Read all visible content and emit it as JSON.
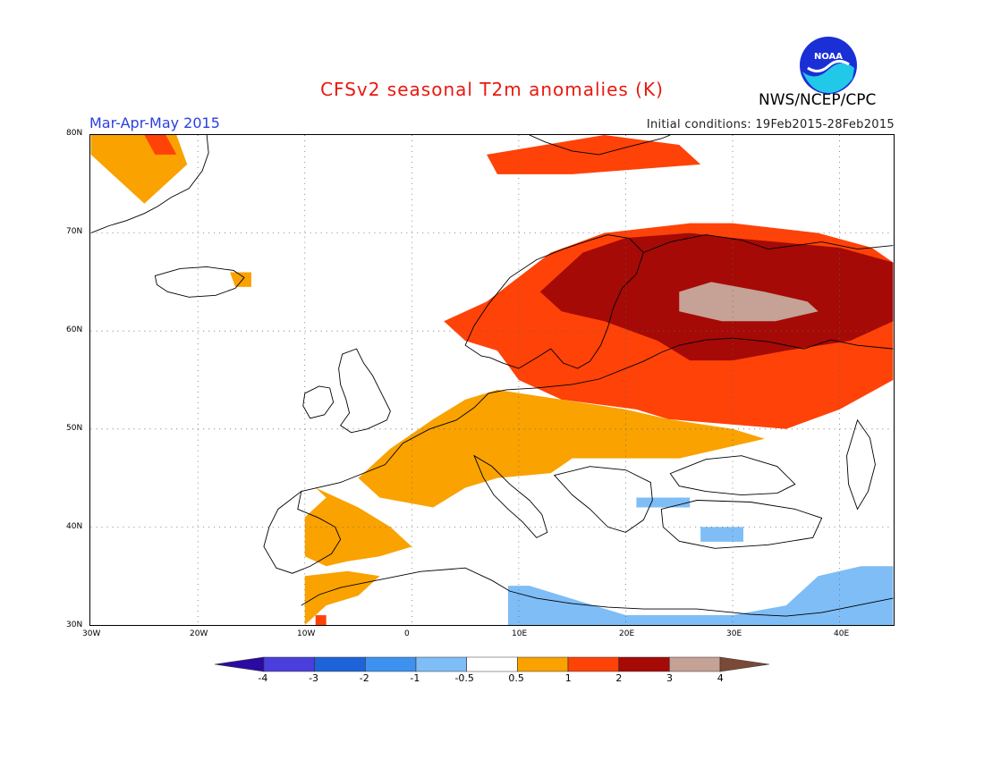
{
  "title": "CFSv2 seasonal T2m anomalies (K)",
  "season": "Mar-Apr-May 2015",
  "initial_conditions": "Initial conditions: 19Feb2015-28Feb2015",
  "agency": "NWS/NCEP/CPC",
  "logo_text": "NOAA",
  "map": {
    "lon_range": [
      -30,
      45
    ],
    "lat_range": [
      30,
      80
    ],
    "lon_labels": [
      "30W",
      "20W",
      "10W",
      "0",
      "10E",
      "20E",
      "30E",
      "40E"
    ],
    "lat_labels": [
      "80N",
      "70N",
      "60N",
      "50N",
      "40N",
      "30N"
    ],
    "regions": [
      {
        "category": "0.5-1",
        "lonlat": [
          [
            -30,
            80
          ],
          [
            -22,
            80
          ],
          [
            -21,
            77
          ],
          [
            -23,
            75
          ],
          [
            -25,
            73
          ],
          [
            -28,
            76
          ],
          [
            -30,
            78
          ]
        ]
      },
      {
        "category": "1-2",
        "lonlat": [
          [
            -25,
            80
          ],
          [
            -23,
            80
          ],
          [
            -22,
            78
          ],
          [
            -24,
            78
          ]
        ]
      },
      {
        "category": "0.5-1",
        "lonlat": [
          [
            -17,
            66
          ],
          [
            -15,
            66
          ],
          [
            -15,
            64.5
          ],
          [
            -16.5,
            64.5
          ]
        ]
      },
      {
        "category": "1-2",
        "lonlat": [
          [
            7,
            78
          ],
          [
            18,
            80
          ],
          [
            25,
            79
          ],
          [
            27,
            77
          ],
          [
            15,
            76
          ],
          [
            8,
            76
          ]
        ]
      },
      {
        "category": "1-2",
        "lonlat": [
          [
            3,
            61
          ],
          [
            7,
            63
          ],
          [
            13,
            68
          ],
          [
            18,
            70
          ],
          [
            26,
            71
          ],
          [
            30,
            71
          ],
          [
            38,
            70
          ],
          [
            43,
            68.5
          ],
          [
            45,
            67
          ],
          [
            45,
            55
          ],
          [
            40,
            52
          ],
          [
            35,
            50
          ],
          [
            24,
            51
          ],
          [
            21,
            52
          ],
          [
            14,
            53
          ],
          [
            10,
            55
          ],
          [
            8,
            58
          ],
          [
            5,
            59
          ]
        ]
      },
      {
        "category": "2-3",
        "lonlat": [
          [
            12,
            64
          ],
          [
            16,
            68
          ],
          [
            20,
            69.5
          ],
          [
            26,
            70
          ],
          [
            30,
            69.5
          ],
          [
            35,
            69
          ],
          [
            40,
            68.5
          ],
          [
            45,
            67
          ],
          [
            45,
            61
          ],
          [
            41,
            59
          ],
          [
            35,
            58
          ],
          [
            30,
            57
          ],
          [
            26,
            57
          ],
          [
            23,
            59
          ],
          [
            18,
            61
          ],
          [
            14,
            62
          ]
        ]
      },
      {
        "category": "3-4",
        "lonlat": [
          [
            25,
            64
          ],
          [
            28,
            65
          ],
          [
            33,
            64
          ],
          [
            37,
            63
          ],
          [
            38,
            62
          ],
          [
            34,
            61
          ],
          [
            29,
            61
          ],
          [
            25,
            62
          ]
        ]
      },
      {
        "category": "0.5-1",
        "lonlat": [
          [
            -9,
            44
          ],
          [
            -5,
            42
          ],
          [
            -2,
            40
          ],
          [
            0,
            38
          ],
          [
            -3,
            37
          ],
          [
            -6,
            36.5
          ],
          [
            -8,
            36
          ],
          [
            -10,
            37
          ],
          [
            -10,
            41
          ],
          [
            -8,
            43
          ]
        ]
      },
      {
        "category": "0.5-1",
        "lonlat": [
          [
            -2,
            48
          ],
          [
            2,
            51
          ],
          [
            5,
            53
          ],
          [
            8,
            54
          ],
          [
            14,
            53
          ],
          [
            20,
            52
          ],
          [
            24,
            51
          ],
          [
            30,
            50
          ],
          [
            33,
            49
          ],
          [
            25,
            47
          ],
          [
            20,
            47
          ],
          [
            15,
            47
          ],
          [
            13,
            45.5
          ],
          [
            8,
            45
          ],
          [
            5,
            44
          ],
          [
            2,
            42
          ],
          [
            -3,
            43
          ],
          [
            -5,
            45
          ]
        ]
      },
      {
        "category": "0.5-1",
        "lonlat": [
          [
            -10,
            35
          ],
          [
            -6,
            35.5
          ],
          [
            -3,
            35
          ],
          [
            -5,
            33
          ],
          [
            -8,
            32
          ],
          [
            -10,
            30
          ],
          [
            -10,
            31
          ]
        ]
      },
      {
        "category": "1-2",
        "lonlat": [
          [
            -9,
            31
          ],
          [
            -8,
            31
          ],
          [
            -8,
            30
          ],
          [
            -9,
            30
          ]
        ]
      },
      {
        "category": "-1--0.5",
        "lonlat": [
          [
            9,
            34
          ],
          [
            11,
            34
          ],
          [
            14,
            33
          ],
          [
            20,
            31
          ],
          [
            25,
            31
          ],
          [
            30,
            31
          ],
          [
            35,
            32
          ],
          [
            38,
            35
          ],
          [
            42,
            36
          ],
          [
            45,
            36
          ],
          [
            45,
            30
          ],
          [
            9,
            30
          ]
        ]
      },
      {
        "category": "-1--0.5",
        "lonlat": [
          [
            21,
            43
          ],
          [
            26,
            43
          ],
          [
            26,
            42
          ],
          [
            21,
            42
          ]
        ]
      },
      {
        "category": "-1--0.5",
        "lonlat": [
          [
            27,
            40
          ],
          [
            31,
            40
          ],
          [
            31,
            38.5
          ],
          [
            27,
            38.5
          ]
        ]
      }
    ]
  },
  "colorbar": {
    "labels": [
      "-4",
      "-3",
      "-2",
      "-1",
      "-0.5",
      "0.5",
      "1",
      "2",
      "3",
      "4"
    ],
    "colors": [
      "#2a0aa3",
      "#4a3fdc",
      "#1f63d8",
      "#3d92f0",
      "#7fbdf6",
      "#ffffff",
      "#f9a200",
      "#ff4208",
      "#a50a06",
      "#c5a196",
      "#7a4a37"
    ]
  },
  "category_colors": {
    "-1--0.5": "#7fbdf6",
    "0.5-1": "#f9a200",
    "1-2": "#ff4208",
    "2-3": "#a50a06",
    "3-4": "#c5a196"
  }
}
